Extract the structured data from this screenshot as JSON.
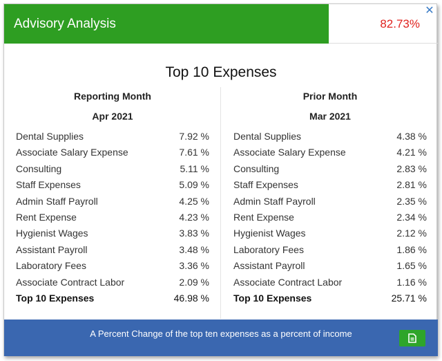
{
  "header": {
    "title": "Advisory Analysis",
    "value": "82.73%",
    "close_icon": "close-icon",
    "value_color": "#e0231f",
    "accent": "#2e9e22"
  },
  "section_title": "Top 10 Expenses",
  "left": {
    "heading": "Reporting Month",
    "period": "Apr 2021",
    "rows": [
      {
        "name": "Dental Supplies",
        "pct": "7.92 %"
      },
      {
        "name": "Associate Salary Expense",
        "pct": "7.61 %"
      },
      {
        "name": "Consulting",
        "pct": "5.11 %"
      },
      {
        "name": "Staff Expenses",
        "pct": "5.09 %"
      },
      {
        "name": "Admin Staff Payroll",
        "pct": "4.25 %"
      },
      {
        "name": "Rent Expense",
        "pct": "4.23 %"
      },
      {
        "name": "Hygienist Wages",
        "pct": "3.83 %"
      },
      {
        "name": "Assistant Payroll",
        "pct": "3.48 %"
      },
      {
        "name": "Laboratory Fees",
        "pct": "3.36 %"
      },
      {
        "name": "Associate Contract Labor",
        "pct": "2.09 %"
      }
    ],
    "total": {
      "name": "Top 10 Expenses",
      "pct": "46.98 %"
    }
  },
  "right": {
    "heading": "Prior Month",
    "period": "Mar 2021",
    "rows": [
      {
        "name": "Dental Supplies",
        "pct": "4.38 %"
      },
      {
        "name": "Associate Salary Expense",
        "pct": "4.21 %"
      },
      {
        "name": "Consulting",
        "pct": "2.83 %"
      },
      {
        "name": "Staff Expenses",
        "pct": "2.81 %"
      },
      {
        "name": "Admin Staff Payroll",
        "pct": "2.35 %"
      },
      {
        "name": "Rent Expense",
        "pct": "2.34 %"
      },
      {
        "name": "Hygienist Wages",
        "pct": "2.12 %"
      },
      {
        "name": "Laboratory Fees",
        "pct": "1.86 %"
      },
      {
        "name": "Assistant Payroll",
        "pct": "1.65 %"
      },
      {
        "name": "Associate Contract Labor",
        "pct": "1.16 %"
      }
    ],
    "total": {
      "name": "Top 10 Expenses",
      "pct": "25.71 %"
    }
  },
  "footer": {
    "text": "A Percent Change of the top ten expenses as a percent of income",
    "button_icon": "document-icon",
    "color": "#3a67b0"
  }
}
